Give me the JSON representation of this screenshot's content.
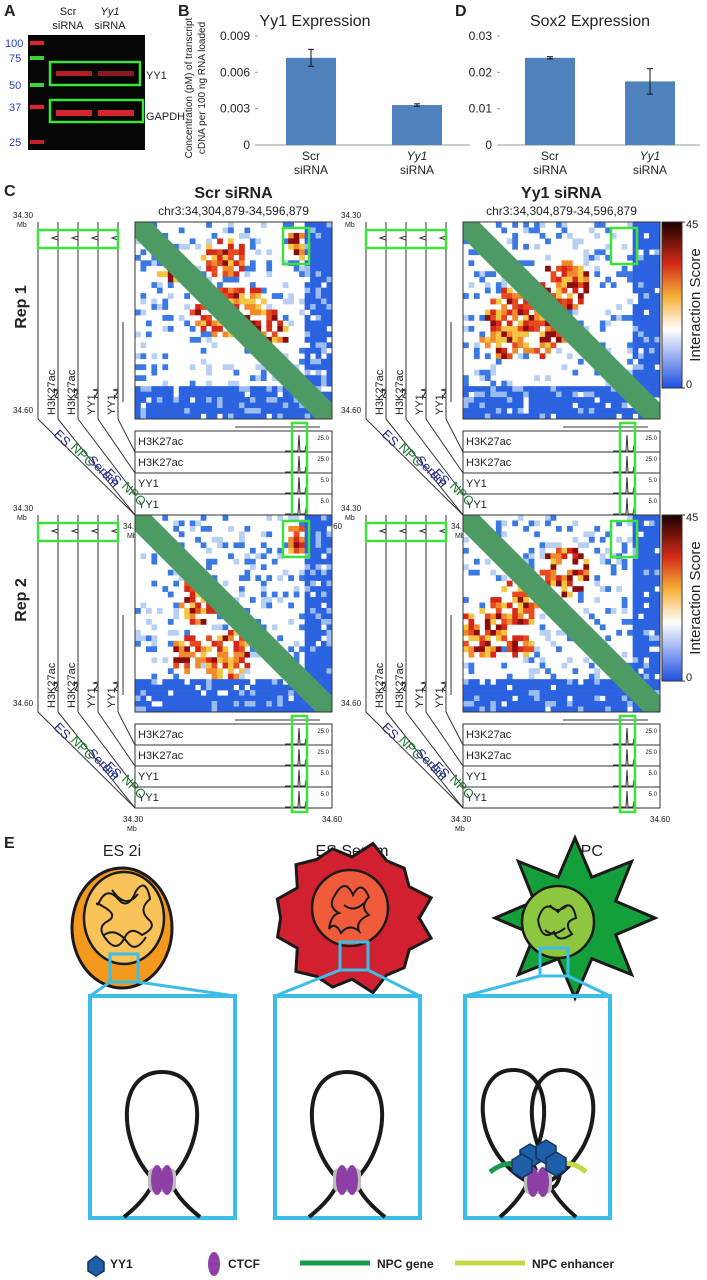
{
  "panel_a": {
    "label": "A",
    "lanes": [
      [
        "Scr",
        "siRNA"
      ],
      [
        "Yy1",
        "siRNA"
      ]
    ],
    "ladder": [
      100,
      75,
      50,
      37,
      25
    ],
    "bands": [
      "YY1",
      "GAPDH"
    ]
  },
  "chart_data": [
    {
      "type": "bar",
      "label": "B",
      "title": "Yy1 Expression",
      "ylabel_lines": [
        "Concentration (pM) of transcript",
        "cDNA per 100 ng RNA loaded"
      ],
      "categories": [
        "Scr siRNA",
        "Yy1 siRNA"
      ],
      "values": [
        0.0072,
        0.0033
      ],
      "errors": [
        0.0007,
        0.0001
      ],
      "color": "#4f81bd",
      "ylim": [
        0,
        0.009
      ],
      "yticks": [
        0,
        0.003,
        0.006,
        0.009
      ]
    },
    {
      "type": "bar",
      "label": "D",
      "title": "Sox2 Expression",
      "categories": [
        "Scr siRNA",
        "Yy1 siRNA"
      ],
      "values": [
        0.024,
        0.0175
      ],
      "errors": [
        0.0003,
        0.0035
      ],
      "color": "#4f81bd",
      "ylim": [
        0,
        0.03
      ],
      "yticks": [
        0,
        0.01,
        0.02,
        0.03
      ]
    }
  ],
  "panel_c": {
    "label": "C",
    "columns": [
      {
        "title": "Scr siRNA",
        "region": "chr3:34,304,879-34,596,879"
      },
      {
        "title": "Yy1 siRNA",
        "region": "chr3:34,304,879-34,596,879"
      }
    ],
    "rows": [
      "Rep 1",
      "Rep 2"
    ],
    "colorbar": {
      "label": "Interaction Score",
      "ticks": [
        0,
        45
      ]
    },
    "tracks": [
      {
        "name": "H3K27ac",
        "scale": "25.0"
      },
      {
        "name": "H3K27ac",
        "scale": "25.0"
      },
      {
        "name": "YY1",
        "scale": "5.0"
      },
      {
        "name": "YY1",
        "scale": "5.0"
      }
    ],
    "samples": [
      {
        "name": "ES",
        "color": "#1f2a8a"
      },
      {
        "name": "NPC",
        "color": "#1e7a2e"
      },
      {
        "name": "Serum",
        "color": "#1f2a8a"
      },
      {
        "name": "ES",
        "color": "#1f2a8a"
      },
      {
        "name": "NPC",
        "color": "#1e7a2e"
      }
    ],
    "axis": {
      "start": "34.30",
      "end": "34.60",
      "unit": "Mb"
    }
  },
  "panel_e": {
    "label": "E",
    "cells": [
      "ES 2i",
      "ES Serum",
      "NPC"
    ],
    "legend": [
      "YY1",
      "CTCF",
      "NPC gene",
      "NPC enhancer"
    ]
  }
}
